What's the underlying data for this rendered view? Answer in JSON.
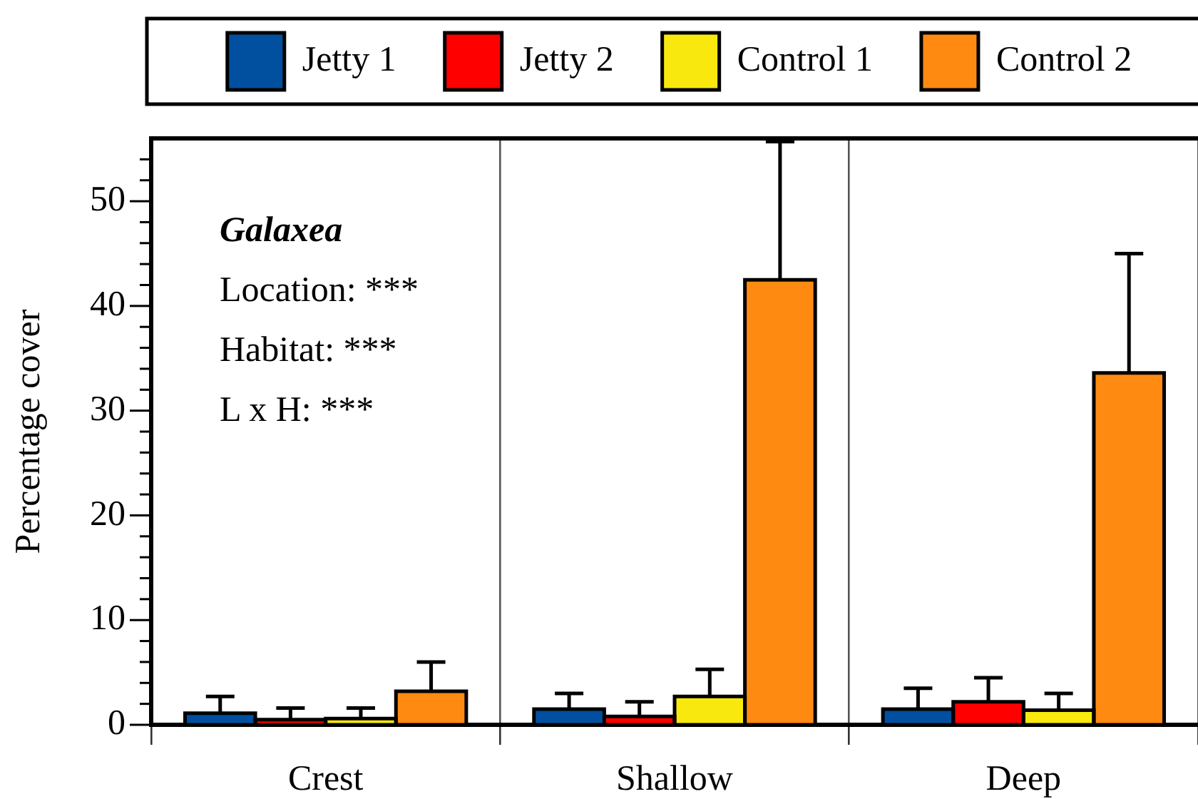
{
  "chart_data": {
    "type": "bar",
    "ylabel": "Percentage cover",
    "categories": [
      "Crest",
      "Shallow",
      "Deep"
    ],
    "series": [
      {
        "name": "Jetty 1",
        "color": "#00509f",
        "values": [
          1.1,
          1.5,
          1.5
        ],
        "errors": [
          [
            1.1,
            2.7
          ],
          [
            1.5,
            3.0
          ],
          [
            1.5,
            3.5
          ]
        ]
      },
      {
        "name": "Jetty 2",
        "color": "#ff0000",
        "values": [
          0.5,
          0.8,
          2.2
        ],
        "errors": [
          [
            0.5,
            1.6
          ],
          [
            0.8,
            2.2
          ],
          [
            2.2,
            4.5
          ]
        ]
      },
      {
        "name": "Control 1",
        "color": "#f8e80e",
        "values": [
          0.6,
          2.7,
          1.4
        ],
        "errors": [
          [
            0.6,
            1.6
          ],
          [
            2.7,
            5.3
          ],
          [
            1.4,
            3.0
          ]
        ]
      },
      {
        "name": "Control 2",
        "color": "#ff8a12",
        "values": [
          3.2,
          42.5,
          33.6
        ],
        "errors": [
          [
            3.2,
            6.0
          ],
          [
            42.5,
            55.7
          ],
          [
            33.6,
            45.0
          ]
        ]
      }
    ],
    "ylim": [
      0,
      56
    ],
    "yticks": [
      0,
      {
        "value": 2,
        "label": null
      },
      {
        "value": 4,
        "label": null
      },
      {
        "value": 6,
        "label": null
      },
      {
        "value": 8,
        "label": null
      },
      10,
      {
        "value": 12,
        "label": null
      },
      {
        "value": 14,
        "label": null
      },
      {
        "value": 16,
        "label": null
      },
      {
        "value": 18,
        "label": null
      },
      20,
      {
        "value": 22,
        "label": null
      },
      {
        "value": 24,
        "label": null
      },
      {
        "value": 26,
        "label": null
      },
      {
        "value": 28,
        "label": null
      },
      30,
      {
        "value": 32,
        "label": null
      },
      {
        "value": 34,
        "label": null
      },
      {
        "value": 36,
        "label": null
      },
      {
        "value": 38,
        "label": null
      },
      40,
      {
        "value": 42,
        "label": null
      },
      {
        "value": 44,
        "label": null
      },
      {
        "value": 46,
        "label": null
      },
      {
        "value": 48,
        "label": null
      },
      50,
      {
        "value": 52,
        "label": null
      },
      {
        "value": 54,
        "label": null
      }
    ],
    "grid": "x",
    "legend": "top",
    "annotations": [
      "Galaxea",
      "Location: ***",
      "Habitat: ***",
      "L x H: ***"
    ]
  }
}
